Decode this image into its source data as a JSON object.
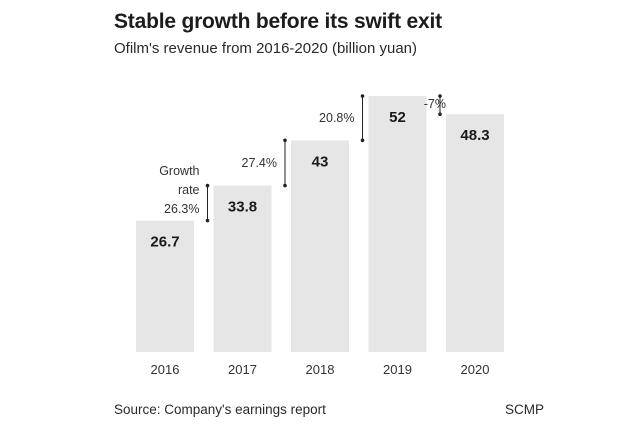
{
  "title": "Stable growth before its swift exit",
  "subtitle": "Ofilm's revenue from 2016-2020 (billion yuan)",
  "source": "Source: Company's earnings report",
  "brand": "SCMP",
  "colors": {
    "bar": "#e6e6e6",
    "text": "#1a1a1a",
    "line": "#222222"
  },
  "chart_data": {
    "type": "bar",
    "title": "Stable growth before its swift exit",
    "subtitle": "Ofilm's revenue from 2016-2020 (billion yuan)",
    "xlabel": "",
    "ylabel": "billion yuan",
    "categories": [
      "2016",
      "2017",
      "2018",
      "2019",
      "2020"
    ],
    "values": [
      26.7,
      33.8,
      43,
      52,
      48.3
    ],
    "value_labels": [
      "26.7",
      "33.8",
      "43",
      "52",
      "48.3"
    ],
    "ylim": [
      0,
      52
    ],
    "grid": false,
    "growth_label_lines": [
      "Growth",
      "rate"
    ],
    "growth_rates": [
      {
        "from": "2016",
        "to": "2017",
        "label": "26.3%"
      },
      {
        "from": "2017",
        "to": "2018",
        "label": "27.4%"
      },
      {
        "from": "2018",
        "to": "2019",
        "label": "20.8%"
      },
      {
        "from": "2019",
        "to": "2020",
        "label": "-7%"
      }
    ]
  }
}
